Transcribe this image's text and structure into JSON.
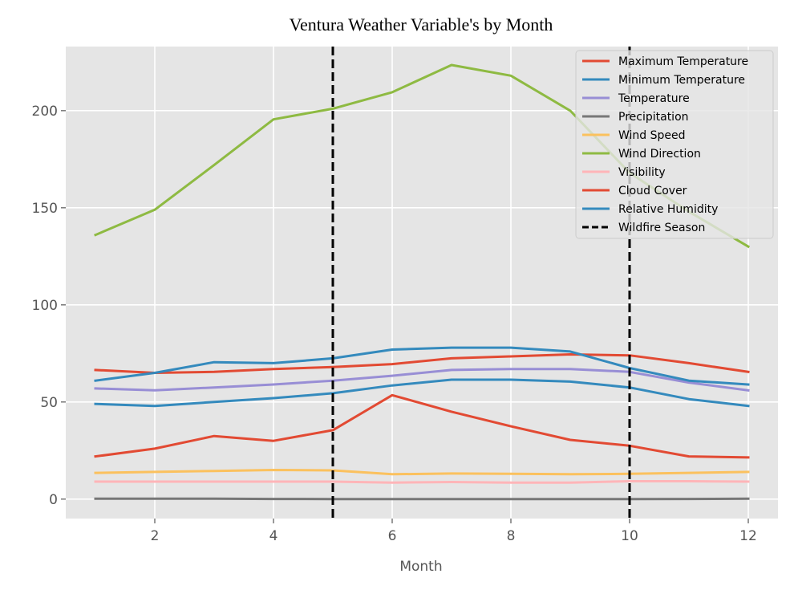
{
  "chart_data": {
    "type": "line",
    "title": "Ventura Weather Variable's by Month",
    "xlabel": "Month",
    "ylabel": "",
    "xlim": [
      0.5,
      12.5
    ],
    "ylim": [
      -10,
      233
    ],
    "xticks": [
      2,
      4,
      6,
      8,
      10,
      12
    ],
    "yticks": [
      0,
      50,
      100,
      150,
      200
    ],
    "grid": true,
    "legend_position": "top-right",
    "x": [
      1,
      2,
      3,
      4,
      5,
      6,
      7,
      8,
      9,
      10,
      11,
      12
    ],
    "series": [
      {
        "name": "Maximum Temperature",
        "color": "#E24A33",
        "values": [
          66.5,
          65,
          65.5,
          67,
          68,
          69.5,
          72.5,
          73.5,
          74.5,
          74,
          70,
          65.5
        ]
      },
      {
        "name": "Minimum Temperature",
        "color": "#348ABD",
        "values": [
          49,
          48,
          50,
          52,
          54.5,
          58.5,
          61.5,
          61.5,
          60.5,
          57.5,
          51.5,
          48
        ]
      },
      {
        "name": "Temperature",
        "color": "#988ED5",
        "values": [
          57,
          56,
          57.5,
          59,
          61,
          63.5,
          66.5,
          67,
          67,
          65.5,
          60,
          56
        ]
      },
      {
        "name": "Precipitation",
        "color": "#777777",
        "values": [
          0.2,
          0.2,
          0.2,
          0.1,
          0.05,
          0.02,
          0.01,
          0.01,
          0.02,
          0.05,
          0.1,
          0.2
        ]
      },
      {
        "name": "Wind Speed",
        "color": "#FBC15E",
        "values": [
          13.5,
          14,
          14.5,
          15,
          14.8,
          12.8,
          13.2,
          13,
          12.8,
          13,
          13.5,
          14
        ]
      },
      {
        "name": "Wind Direction",
        "color": "#8EBA42",
        "values": [
          136,
          149,
          172,
          195.5,
          201,
          209.5,
          223.5,
          218,
          200,
          168,
          148,
          130
        ]
      },
      {
        "name": "Visibility",
        "color": "#FFB5B8",
        "values": [
          9,
          9,
          9,
          9,
          9,
          8.5,
          8.8,
          8.5,
          8.5,
          9.2,
          9.2,
          9
        ]
      },
      {
        "name": "Cloud Cover",
        "color": "#E24A33",
        "values": [
          22,
          26,
          32.5,
          30,
          35.5,
          53.5,
          45,
          37.5,
          30.5,
          27.5,
          22,
          21.5
        ]
      },
      {
        "name": "Relative Humidity",
        "color": "#348ABD",
        "values": [
          61,
          65,
          70.5,
          70,
          72.5,
          77,
          78,
          78,
          76,
          67.5,
          61,
          59
        ]
      }
    ],
    "vlines": {
      "name": "Wildfire Season",
      "x": [
        5,
        10
      ],
      "color": "#000000",
      "style": "dashed"
    }
  }
}
